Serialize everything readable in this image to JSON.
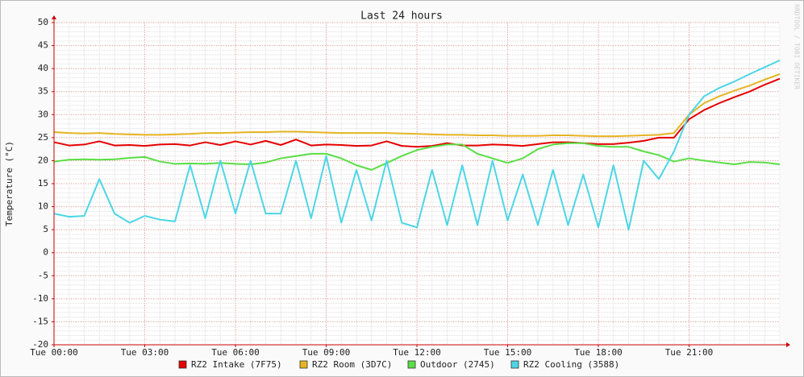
{
  "chart_data": {
    "type": "line",
    "title": "Last 24 hours",
    "y_label": "Temperature (°C)",
    "watermark": "RRDTOOL / TOBI OETIKER",
    "x": [
      0,
      0.5,
      1,
      1.5,
      2,
      2.5,
      3,
      3.5,
      4,
      4.5,
      5,
      5.5,
      6,
      6.5,
      7,
      7.5,
      8,
      8.5,
      9,
      9.5,
      10,
      10.5,
      11,
      11.5,
      12,
      12.5,
      13,
      13.5,
      14,
      14.5,
      15,
      15.5,
      16,
      16.5,
      17,
      17.5,
      18,
      18.5,
      19,
      19.5,
      20,
      20.5,
      21,
      21.5,
      22,
      22.5,
      23,
      23.5,
      24
    ],
    "xlim": [
      0,
      24
    ],
    "xticks": [
      {
        "value": 0,
        "label": "Tue 00:00"
      },
      {
        "value": 3,
        "label": "Tue 03:00"
      },
      {
        "value": 6,
        "label": "Tue 06:00"
      },
      {
        "value": 9,
        "label": "Tue 09:00"
      },
      {
        "value": 12,
        "label": "Tue 12:00"
      },
      {
        "value": 15,
        "label": "Tue 15:00"
      },
      {
        "value": 18,
        "label": "Tue 18:00"
      },
      {
        "value": 21,
        "label": "Tue 21:00"
      }
    ],
    "ylim": [
      -20,
      50
    ],
    "yticks": [
      -20,
      -15,
      -10,
      -5,
      0,
      5,
      10,
      15,
      20,
      25,
      30,
      35,
      40,
      45,
      50
    ],
    "grid": true,
    "legend": "bottom",
    "series": [
      {
        "name": "RZ2 Intake (7F75)",
        "color": "#e60000",
        "values": [
          24,
          23.3,
          23.5,
          24.2,
          23.3,
          23.4,
          23.2,
          23.5,
          23.6,
          23.3,
          24,
          23.4,
          24.2,
          23.5,
          24.3,
          23.4,
          24.6,
          23.3,
          23.5,
          23.4,
          23.2,
          23.3,
          24.2,
          23.2,
          23,
          23.2,
          23.8,
          23.3,
          23.3,
          23.5,
          23.4,
          23.2,
          23.6,
          24,
          24,
          23.8,
          23.6,
          23.6,
          23.9,
          24.3,
          25,
          25,
          29,
          31,
          32.5,
          33.8,
          35,
          36.5,
          37.8
        ]
      },
      {
        "name": "RZ2 Room (3D7C)",
        "color": "#e6b422",
        "values": [
          26.2,
          26,
          25.9,
          26,
          25.8,
          25.7,
          25.6,
          25.6,
          25.7,
          25.8,
          26,
          26,
          26.1,
          26.2,
          26.2,
          26.3,
          26.3,
          26.2,
          26.1,
          26,
          26,
          26,
          26,
          25.9,
          25.8,
          25.7,
          25.6,
          25.6,
          25.5,
          25.5,
          25.4,
          25.4,
          25.4,
          25.5,
          25.5,
          25.4,
          25.3,
          25.3,
          25.4,
          25.5,
          25.6,
          26,
          30,
          32.5,
          34,
          35.2,
          36.3,
          37.6,
          38.8
        ]
      },
      {
        "name": "Outdoor (2745)",
        "color": "#5ade45",
        "values": [
          19.8,
          20.2,
          20.3,
          20.2,
          20.3,
          20.6,
          20.8,
          19.8,
          19.3,
          19.4,
          19.3,
          19.5,
          19.3,
          19.2,
          19.6,
          20.5,
          21,
          21.5,
          21.5,
          20.5,
          19,
          18,
          19.5,
          21,
          22.3,
          23,
          23.5,
          23.5,
          21.5,
          20.5,
          19.5,
          20.5,
          22.5,
          23.5,
          23.8,
          23.8,
          23.2,
          23,
          23,
          22,
          21.2,
          19.8,
          20.5,
          20,
          19.6,
          19.2,
          19.7,
          19.6,
          19.2
        ]
      },
      {
        "name": "RZ2 Cooling (3588)",
        "color": "#4cd6e6",
        "values": [
          8.5,
          7.8,
          8,
          16,
          8.5,
          6.5,
          8,
          7.2,
          6.8,
          19,
          7.5,
          20,
          8.5,
          20,
          8.5,
          8.5,
          20,
          7.5,
          21,
          6.5,
          18,
          7,
          20,
          6.5,
          5.5,
          18,
          6,
          19,
          6,
          20,
          7,
          17,
          6,
          18,
          6,
          17,
          5.5,
          19,
          5,
          20,
          16,
          22,
          30,
          34,
          35.8,
          37.2,
          38.8,
          40.3,
          41.8
        ]
      }
    ]
  }
}
